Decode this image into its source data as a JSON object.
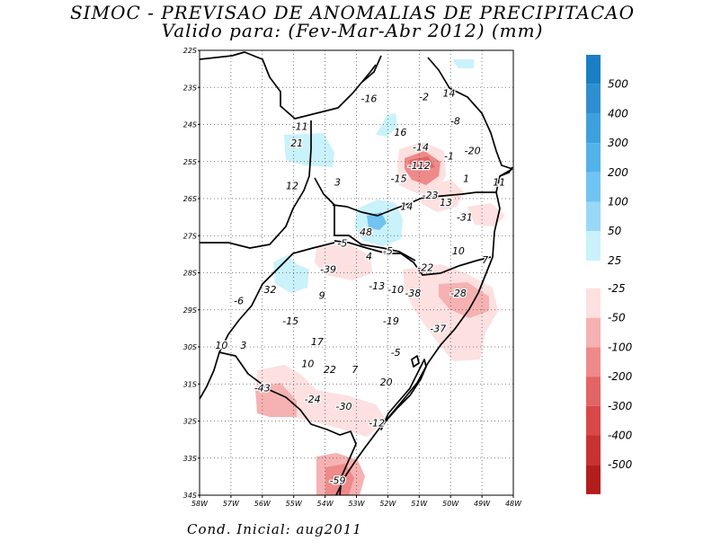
{
  "title": "SIMOC - PREVISAO DE ANOMALIAS DE PRECIPITACAO",
  "subtitle": "Valido para: (Fev-Mar-Abr 2012) (mm)",
  "footer": "Cond. Inicial: aug2011",
  "axes": {
    "lat_labels": [
      "22S",
      "23S",
      "24S",
      "25S",
      "26S",
      "27S",
      "28S",
      "29S",
      "30S",
      "31S",
      "32S",
      "33S",
      "34S"
    ],
    "lon_labels": [
      "58W",
      "57W",
      "56W",
      "55W",
      "54W",
      "53W",
      "52W",
      "51W",
      "50W",
      "49W",
      "48W"
    ],
    "lat_range": [
      -34,
      -22
    ],
    "lon_range": [
      -58,
      -48
    ]
  },
  "colorbar": {
    "positive": [
      {
        "label": "500",
        "color": "#1a7fc4"
      },
      {
        "label": "400",
        "color": "#2f8fd0"
      },
      {
        "label": "300",
        "color": "#3ea0dc"
      },
      {
        "label": "200",
        "color": "#53b2e8"
      },
      {
        "label": "100",
        "color": "#71c4f2"
      },
      {
        "label": "50",
        "color": "#9ad8f8"
      },
      {
        "label": "25",
        "color": "#c9f2fb"
      }
    ],
    "negative": [
      {
        "label": "-25",
        "color": "#fde0e0"
      },
      {
        "label": "-50",
        "color": "#f6b2b2"
      },
      {
        "label": "-100",
        "color": "#ee8a8a"
      },
      {
        "label": "-200",
        "color": "#e36464"
      },
      {
        "label": "-300",
        "color": "#d84848"
      },
      {
        "label": "-400",
        "color": "#c83232"
      },
      {
        "label": "-500",
        "color": "#b31d1d"
      }
    ]
  },
  "stations": [
    {
      "value": "-16",
      "lon": -52.6,
      "lat": -23.3
    },
    {
      "value": "-2",
      "lon": -50.85,
      "lat": -23.25
    },
    {
      "value": "14",
      "lon": -50.05,
      "lat": -23.15
    },
    {
      "value": "-8",
      "lon": -49.85,
      "lat": -23.9
    },
    {
      "value": "-11",
      "lon": -54.8,
      "lat": -24.05
    },
    {
      "value": "16",
      "lon": -51.6,
      "lat": -24.2
    },
    {
      "value": "21",
      "lon": -54.9,
      "lat": -24.5
    },
    {
      "value": "-14",
      "lon": -50.95,
      "lat": -24.6
    },
    {
      "value": "-20",
      "lon": -49.3,
      "lat": -24.7
    },
    {
      "value": "-1",
      "lon": -50.05,
      "lat": -24.85
    },
    {
      "value": "-112",
      "lon": -51.0,
      "lat": -25.1
    },
    {
      "value": "-15",
      "lon": -51.65,
      "lat": -25.45
    },
    {
      "value": "1",
      "lon": -49.5,
      "lat": -25.45
    },
    {
      "value": "11",
      "lon": -48.45,
      "lat": -25.55
    },
    {
      "value": "12",
      "lon": -55.05,
      "lat": -25.65
    },
    {
      "value": "3",
      "lon": -53.6,
      "lat": -25.55
    },
    {
      "value": "-23",
      "lon": -50.65,
      "lat": -25.9
    },
    {
      "value": "13",
      "lon": -50.15,
      "lat": -26.1
    },
    {
      "value": "14",
      "lon": -51.4,
      "lat": -26.2
    },
    {
      "value": "-31",
      "lon": -49.55,
      "lat": -26.5
    },
    {
      "value": "48",
      "lon": -52.7,
      "lat": -26.9
    },
    {
      "value": "-5",
      "lon": -53.45,
      "lat": -27.2
    },
    {
      "value": "-5",
      "lon": -52.0,
      "lat": -27.4
    },
    {
      "value": "4",
      "lon": -52.6,
      "lat": -27.55
    },
    {
      "value": "10",
      "lon": -49.75,
      "lat": -27.4
    },
    {
      "value": "7",
      "lon": -48.9,
      "lat": -27.65
    },
    {
      "value": "-22",
      "lon": -50.8,
      "lat": -27.85
    },
    {
      "value": "-39",
      "lon": -53.9,
      "lat": -27.9
    },
    {
      "value": "-13",
      "lon": -52.35,
      "lat": -28.35
    },
    {
      "value": "-10",
      "lon": -51.75,
      "lat": -28.45
    },
    {
      "value": "-38",
      "lon": -51.2,
      "lat": -28.55
    },
    {
      "value": "-28",
      "lon": -49.75,
      "lat": -28.55
    },
    {
      "value": "32",
      "lon": -55.75,
      "lat": -28.45
    },
    {
      "value": "9",
      "lon": -54.1,
      "lat": -28.6
    },
    {
      "value": "-6",
      "lon": -56.75,
      "lat": -28.75
    },
    {
      "value": "-15",
      "lon": -55.1,
      "lat": -29.3
    },
    {
      "value": "-19",
      "lon": -51.9,
      "lat": -29.3
    },
    {
      "value": "-37",
      "lon": -50.4,
      "lat": -29.5
    },
    {
      "value": "17",
      "lon": -54.25,
      "lat": -29.85
    },
    {
      "value": "3",
      "lon": -56.6,
      "lat": -29.95
    },
    {
      "value": "10",
      "lon": -57.3,
      "lat": -29.95
    },
    {
      "value": "-5",
      "lon": -51.75,
      "lat": -30.15
    },
    {
      "value": "10",
      "lon": -54.55,
      "lat": -30.45
    },
    {
      "value": "22",
      "lon": -53.85,
      "lat": -30.6
    },
    {
      "value": "7",
      "lon": -53.05,
      "lat": -30.6
    },
    {
      "value": "20",
      "lon": -52.05,
      "lat": -30.95
    },
    {
      "value": "-43",
      "lon": -56.0,
      "lat": -31.1
    },
    {
      "value": "-24",
      "lon": -54.4,
      "lat": -31.4
    },
    {
      "value": "-30",
      "lon": -53.4,
      "lat": -31.6
    },
    {
      "value": "-12",
      "lon": -52.35,
      "lat": -32.05
    },
    {
      "value": "-59",
      "lon": -53.6,
      "lat": -33.6
    }
  ]
}
